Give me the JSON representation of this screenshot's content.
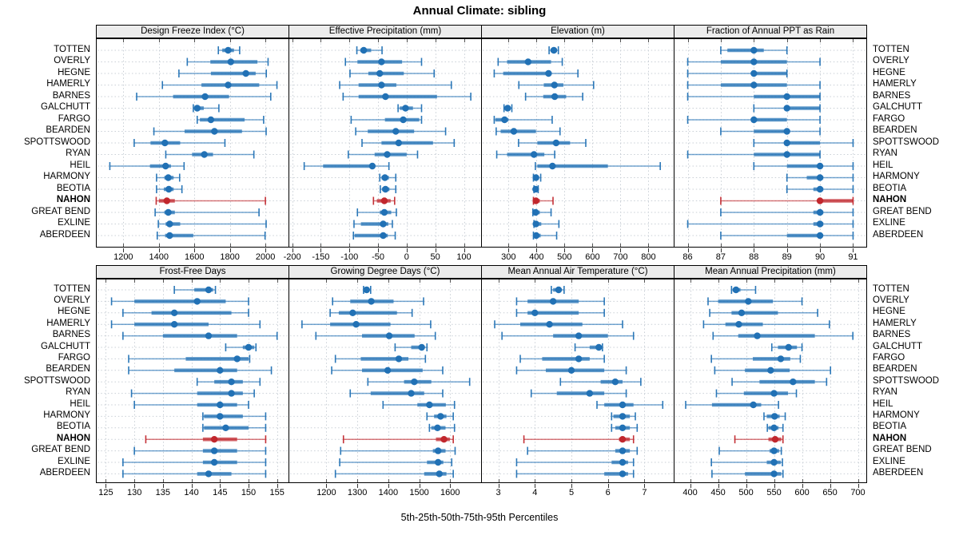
{
  "page": {
    "title": "Annual Climate: sibling",
    "footer": "5th-25th-50th-75th-95th Percentiles"
  },
  "chart_data": {
    "type": "trellis-percentile-dotplot",
    "title": "Annual Climate: sibling",
    "xlabel": "5th-25th-50th-75th-95th Percentiles",
    "percentiles": [
      5,
      25,
      50,
      75,
      95
    ],
    "legend_position": "none",
    "grid": "dotted",
    "layout": {
      "rows": 2,
      "cols": 4
    },
    "colors": {
      "series": "#2171b5",
      "highlight": "#c1272d",
      "grid": "#c9cfd6",
      "strip_bg": "#ececec",
      "border": "#000000"
    },
    "highlight_site": "NAHON",
    "sites": [
      "TOTTEN",
      "OVERLY",
      "HEGNE",
      "HAMERLY",
      "BARNES",
      "GALCHUTT",
      "FARGO",
      "BEARDEN",
      "SPOTTSWOOD",
      "RYAN",
      "HEIL",
      "HARMONY",
      "BEOTIA",
      "NAHON",
      "GREAT BEND",
      "EXLINE",
      "ABERDEEN"
    ],
    "panels": [
      {
        "label": "Design Freeze Index (°C)",
        "ticks": [
          1200,
          1400,
          1600,
          1800,
          2000
        ],
        "xlim": [
          1050,
          2130
        ],
        "values": [
          [
            1735,
            1757,
            1790,
            1823,
            1855
          ],
          [
            1560,
            1690,
            1805,
            1955,
            2015
          ],
          [
            1513,
            1693,
            1890,
            1945,
            2005
          ],
          [
            1420,
            1640,
            1790,
            1965,
            2065
          ],
          [
            1275,
            1480,
            1660,
            1795,
            2030
          ],
          [
            1594,
            1601,
            1616,
            1653,
            1738
          ],
          [
            1616,
            1631,
            1693,
            1883,
            1990
          ],
          [
            1372,
            1545,
            1713,
            1868,
            2004
          ],
          [
            1261,
            1353,
            1434,
            1520,
            1772
          ],
          [
            1439,
            1587,
            1656,
            1705,
            1935
          ],
          [
            1124,
            1350,
            1438,
            1468,
            1542
          ],
          [
            1387,
            1431,
            1453,
            1483,
            1517
          ],
          [
            1387,
            1428,
            1456,
            1483,
            1530
          ],
          [
            1385,
            1400,
            1445,
            1490,
            2000
          ],
          [
            1379,
            1431,
            1453,
            1490,
            1964
          ],
          [
            1397,
            1438,
            1461,
            1520,
            2004
          ],
          [
            1391,
            1435,
            1461,
            1594,
            1998
          ]
        ]
      },
      {
        "label": "Effective Precipitation (mm)",
        "ticks": [
          -200,
          -150,
          -100,
          -50,
          0,
          50,
          100
        ],
        "xlim": [
          -205,
          130
        ],
        "values": [
          [
            -87,
            -81,
            -75,
            -62,
            -43
          ],
          [
            -107,
            -86,
            -44,
            -8,
            26
          ],
          [
            -99,
            -67,
            -47,
            -5,
            48
          ],
          [
            -117,
            -84,
            -44,
            -18,
            78
          ],
          [
            -111,
            -84,
            -37,
            53,
            112
          ],
          [
            -15,
            -12,
            -2,
            11,
            26
          ],
          [
            -97,
            -38,
            -6,
            22,
            26
          ],
          [
            -89,
            -68,
            -19,
            13,
            68
          ],
          [
            -78,
            -44,
            -14,
            46,
            83
          ],
          [
            -102,
            -56,
            -34,
            0,
            19
          ],
          [
            -179,
            -146,
            -60,
            -55,
            -31
          ],
          [
            -47,
            -44,
            -38,
            -31,
            -19
          ],
          [
            -46,
            -43,
            -37,
            -30,
            -19
          ],
          [
            -58,
            -52,
            -39,
            -28,
            -21
          ],
          [
            -86,
            -47,
            -39,
            -27,
            -18
          ],
          [
            -92,
            -80,
            -41,
            -32,
            -25
          ],
          [
            -93,
            -91,
            -41,
            -33,
            -20
          ]
        ]
      },
      {
        "label": "Elevation (m)",
        "ticks": [
          300,
          400,
          500,
          600,
          700,
          800
        ],
        "xlim": [
          205,
          890
        ],
        "values": [
          [
            445,
            450,
            462,
            473,
            478
          ],
          [
            263,
            295,
            370,
            452,
            492
          ],
          [
            249,
            281,
            443,
            445,
            548
          ],
          [
            337,
            426,
            464,
            496,
            604
          ],
          [
            361,
            424,
            465,
            506,
            565
          ],
          [
            284,
            288,
            297,
            307,
            312
          ],
          [
            249,
            253,
            286,
            300,
            456
          ],
          [
            256,
            272,
            319,
            398,
            484
          ],
          [
            336,
            403,
            470,
            520,
            576
          ],
          [
            258,
            295,
            391,
            428,
            465
          ],
          [
            396,
            403,
            457,
            655,
            842
          ],
          [
            389,
            391,
            398,
            409,
            415
          ],
          [
            391,
            393,
            397,
            403,
            406
          ],
          [
            389,
            391,
            398,
            412,
            459
          ],
          [
            387,
            389,
            397,
            412,
            452
          ],
          [
            391,
            393,
            398,
            417,
            480
          ],
          [
            389,
            391,
            399,
            415,
            472
          ]
        ]
      },
      {
        "label": "Fraction of Annual PPT as Rain",
        "ticks": [
          86,
          87,
          88,
          89,
          90,
          91
        ],
        "xlim": [
          85.6,
          91.4
        ],
        "values": [
          [
            87,
            87.2,
            88,
            88.3,
            89
          ],
          [
            86,
            87,
            88,
            89,
            90
          ],
          [
            86,
            88,
            88,
            89,
            89
          ],
          [
            86,
            87,
            88,
            89,
            90
          ],
          [
            86,
            88,
            89,
            90,
            90
          ],
          [
            88,
            89,
            89,
            90,
            90
          ],
          [
            86,
            88,
            88,
            89,
            90
          ],
          [
            87,
            88,
            89,
            89,
            90
          ],
          [
            88,
            89,
            89,
            90,
            91
          ],
          [
            86,
            88,
            89,
            90,
            90
          ],
          [
            88,
            89,
            90,
            90,
            91
          ],
          [
            89,
            89.6,
            90,
            90.1,
            91
          ],
          [
            89,
            89.8,
            90,
            90.1,
            91
          ],
          [
            87,
            90,
            90,
            91,
            91
          ],
          [
            87,
            89.8,
            90,
            90.1,
            91
          ],
          [
            86,
            89.8,
            90,
            90.1,
            91
          ],
          [
            87,
            89,
            90,
            90,
            91
          ]
        ]
      },
      {
        "label": "Frost-Free Days",
        "ticks": [
          125,
          130,
          135,
          140,
          145,
          150,
          155
        ],
        "xlim": [
          123.4,
          157
        ],
        "values": [
          [
            137,
            140.5,
            143,
            143.8,
            144.2
          ],
          [
            126,
            130,
            141,
            146,
            150
          ],
          [
            128,
            133,
            137,
            147,
            150
          ],
          [
            126,
            130,
            137,
            143,
            152
          ],
          [
            128,
            135,
            143,
            148,
            155
          ],
          [
            146,
            149,
            150,
            151,
            151.3
          ],
          [
            129,
            139,
            148,
            150,
            150.2
          ],
          [
            129,
            137,
            145,
            148,
            154
          ],
          [
            141,
            144,
            147,
            149,
            152
          ],
          [
            129.5,
            141,
            147,
            149,
            151
          ],
          [
            130,
            141,
            145,
            148,
            150
          ],
          [
            142,
            142.2,
            145,
            149,
            153
          ],
          [
            142,
            142.2,
            146,
            150,
            153
          ],
          [
            132,
            142,
            144,
            148,
            153
          ],
          [
            130,
            142,
            144,
            148,
            153
          ],
          [
            128,
            142,
            144,
            148,
            153
          ],
          [
            128,
            141,
            143,
            147,
            153
          ]
        ]
      },
      {
        "label": "Growing Degree Days (°C)",
        "ticks": [
          1200,
          1300,
          1400,
          1500,
          1600
        ],
        "xlim": [
          1080,
          1700
        ],
        "values": [
          [
            1320,
            1322,
            1330,
            1339,
            1343
          ],
          [
            1220,
            1277,
            1345,
            1417,
            1514
          ],
          [
            1212,
            1240,
            1285,
            1428,
            1477
          ],
          [
            1121,
            1212,
            1296,
            1407,
            1537
          ],
          [
            1166,
            1315,
            1403,
            1485,
            1552
          ],
          [
            1422,
            1474,
            1508,
            1514,
            1525
          ],
          [
            1229,
            1311,
            1434,
            1465,
            1520
          ],
          [
            1217,
            1315,
            1398,
            1511,
            1576
          ],
          [
            1334,
            1451,
            1484,
            1539,
            1663
          ],
          [
            1277,
            1343,
            1474,
            1516,
            1576
          ],
          [
            1383,
            1494,
            1533,
            1586,
            1614
          ],
          [
            1525,
            1548,
            1569,
            1588,
            1610
          ],
          [
            1533,
            1539,
            1559,
            1585,
            1614
          ],
          [
            1255,
            1554,
            1580,
            1599,
            1610
          ],
          [
            1246,
            1544,
            1561,
            1585,
            1616
          ],
          [
            1243,
            1525,
            1561,
            1578,
            1605
          ],
          [
            1229,
            1516,
            1565,
            1588,
            1610
          ]
        ]
      },
      {
        "label": "Mean Annual Air Temperature (°C)",
        "ticks": [
          3,
          4,
          5,
          6,
          7
        ],
        "xlim": [
          2.55,
          7.8
        ],
        "values": [
          [
            4.45,
            4.5,
            4.65,
            4.72,
            4.8
          ],
          [
            3.5,
            3.8,
            4.5,
            5.2,
            5.9
          ],
          [
            3.5,
            3.8,
            4.0,
            5.2,
            5.9
          ],
          [
            2.9,
            3.6,
            4.4,
            5.3,
            6.4
          ],
          [
            3.1,
            4.5,
            5.2,
            6.0,
            6.7
          ],
          [
            5.1,
            5.5,
            5.75,
            5.8,
            5.85
          ],
          [
            3.6,
            4.2,
            5.2,
            5.5,
            5.9
          ],
          [
            3.5,
            4.3,
            5.0,
            5.9,
            6.5
          ],
          [
            4.7,
            5.8,
            6.2,
            6.4,
            6.9
          ],
          [
            3.9,
            4.6,
            5.5,
            5.9,
            6.5
          ],
          [
            5.7,
            5.9,
            6.4,
            6.7,
            7.5
          ],
          [
            6.1,
            6.15,
            6.4,
            6.6,
            6.75
          ],
          [
            6.1,
            6.2,
            6.4,
            6.6,
            6.8
          ],
          [
            3.7,
            6.3,
            6.4,
            6.6,
            6.7
          ],
          [
            3.8,
            6.2,
            6.4,
            6.6,
            6.8
          ],
          [
            3.5,
            6.1,
            6.4,
            6.55,
            6.7
          ],
          [
            3.5,
            5.9,
            6.4,
            6.55,
            6.7
          ]
        ]
      },
      {
        "label": "Mean Annual Precipitation (mm)",
        "ticks": [
          400,
          450,
          500,
          550,
          600,
          650,
          700
        ],
        "xlim": [
          372,
          715
        ],
        "values": [
          [
            474,
            476,
            482,
            490,
            517
          ],
          [
            432,
            450,
            504,
            548,
            600
          ],
          [
            435,
            474,
            492,
            557,
            628
          ],
          [
            424,
            463,
            487,
            530,
            649
          ],
          [
            441,
            486,
            520,
            623,
            691
          ],
          [
            546,
            557,
            576,
            591,
            600
          ],
          [
            438,
            512,
            562,
            579,
            597
          ],
          [
            444,
            498,
            544,
            578,
            651
          ],
          [
            475,
            524,
            584,
            623,
            644
          ],
          [
            447,
            496,
            550,
            575,
            590
          ],
          [
            392,
            439,
            513,
            527,
            558
          ],
          [
            532,
            537,
            551,
            560,
            570
          ],
          [
            538,
            540,
            550,
            558,
            566
          ],
          [
            480,
            540,
            552,
            563,
            566
          ],
          [
            452,
            542,
            550,
            559,
            563
          ],
          [
            438,
            537,
            550,
            562,
            565
          ],
          [
            439,
            498,
            550,
            563,
            566
          ]
        ]
      }
    ]
  }
}
